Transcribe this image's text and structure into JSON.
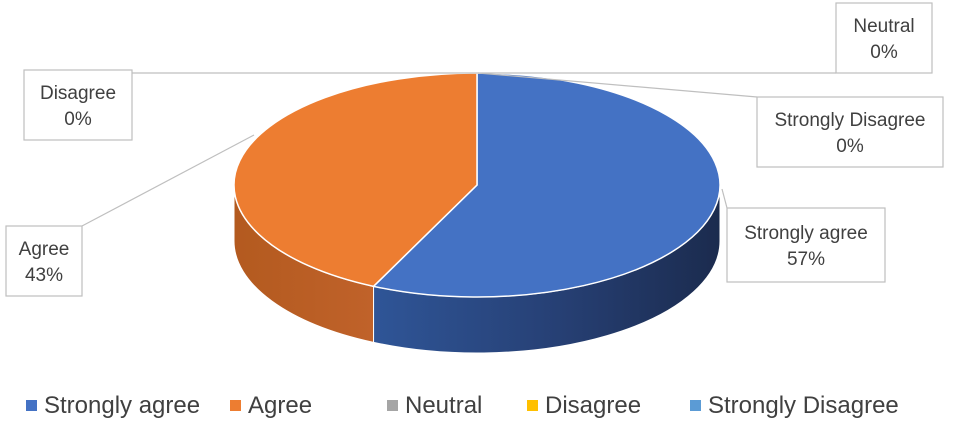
{
  "chart_data": {
    "type": "pie",
    "style": "3d",
    "categories": [
      "Strongly agree",
      "Agree",
      "Neutral",
      "Disagree",
      "Strongly Disagree"
    ],
    "values": [
      57,
      43,
      0,
      0,
      0
    ],
    "data_labels": [
      {
        "category": "Strongly agree",
        "value": "57%"
      },
      {
        "category": "Agree",
        "value": "43%"
      },
      {
        "category": "Neutral",
        "value": "0%"
      },
      {
        "category": "Disagree",
        "value": "0%"
      },
      {
        "category": "Strongly Disagree",
        "value": "0%"
      }
    ],
    "colors": [
      "#4472C4",
      "#ED7D31",
      "#A5A5A5",
      "#FFC000",
      "#5B9BD5"
    ],
    "legend": "bottom",
    "title": ""
  }
}
